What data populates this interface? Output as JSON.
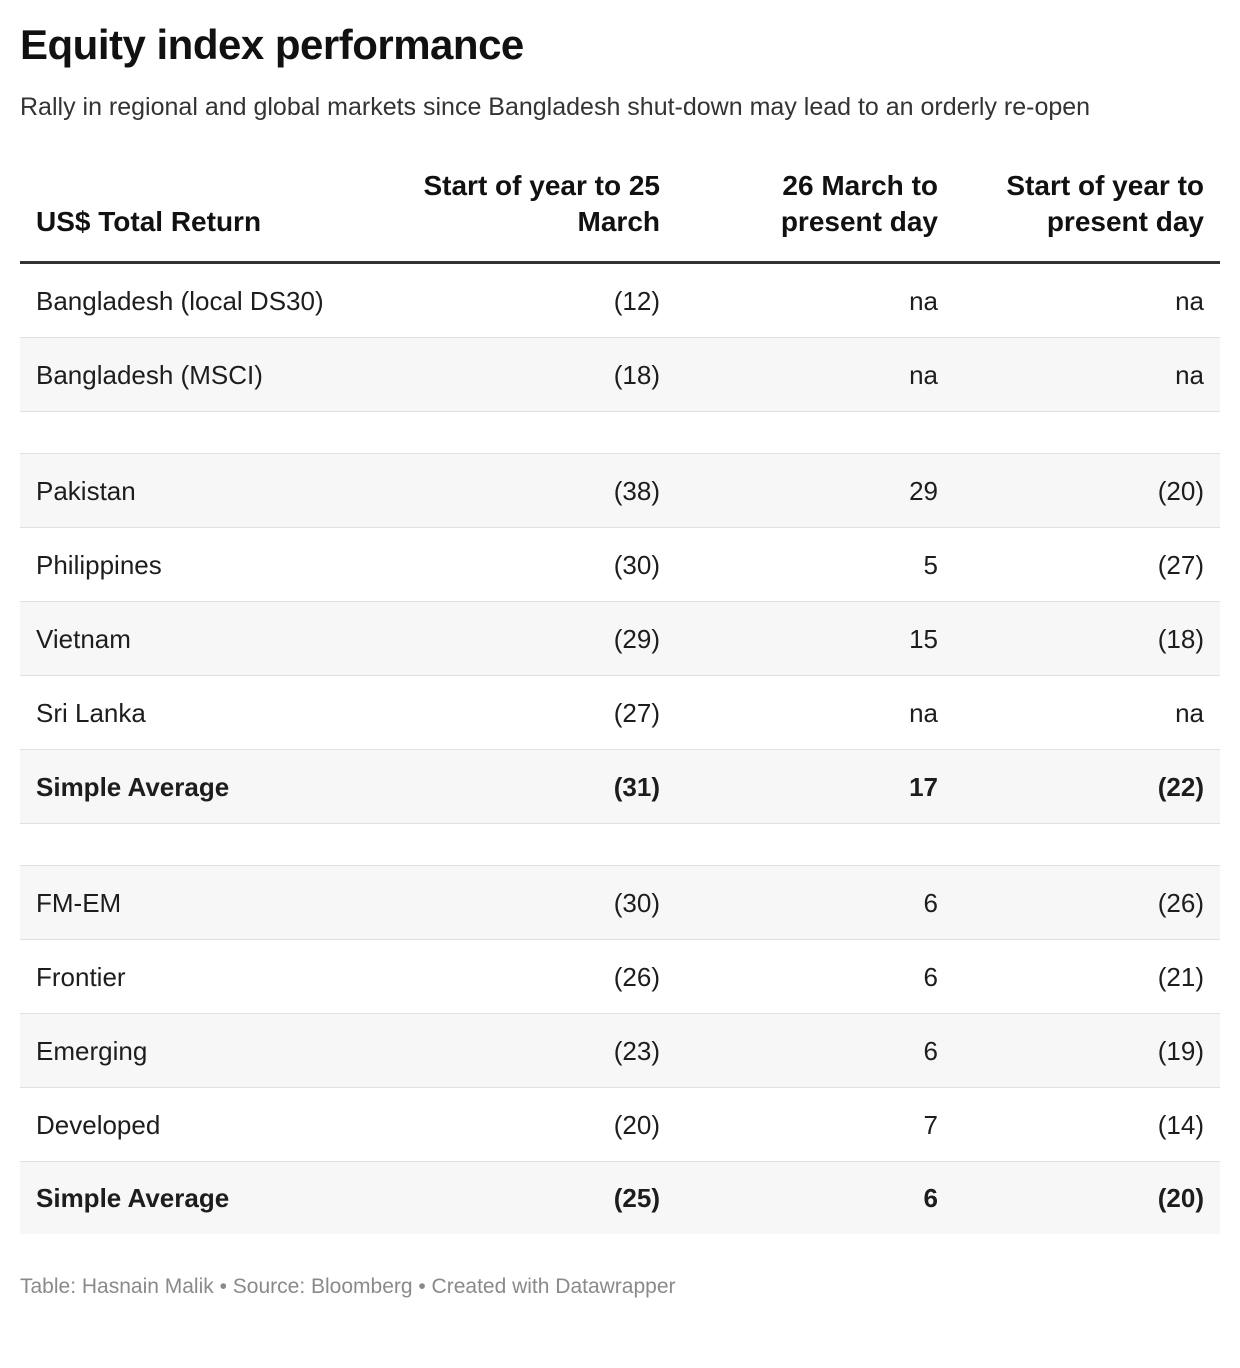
{
  "title": "Equity index performance",
  "subtitle": "Rally in regional and global markets since Bangladesh shut-down may lead to an orderly re-open",
  "footer": "Table: Hasnain Malik • Source: Bloomberg • Created with Datawrapper",
  "chart_data": {
    "type": "table",
    "columns": [
      "US$ Total Return",
      "Start of year to 25 March",
      "26 March to present day",
      "Start of year to present day"
    ],
    "rows": [
      {
        "name": "Bangladesh (local DS30)",
        "cells": [
          "(12)",
          "na",
          "na"
        ],
        "style": "normal"
      },
      {
        "name": "Bangladesh (MSCI)",
        "cells": [
          "(18)",
          "na",
          "na"
        ],
        "style": "normal"
      },
      {
        "name": "",
        "cells": [
          "",
          "",
          ""
        ],
        "style": "spacer"
      },
      {
        "name": "Pakistan",
        "cells": [
          "(38)",
          "29",
          "(20)"
        ],
        "style": "normal"
      },
      {
        "name": "Philippines",
        "cells": [
          "(30)",
          "5",
          "(27)"
        ],
        "style": "normal"
      },
      {
        "name": "Vietnam",
        "cells": [
          "(29)",
          "15",
          "(18)"
        ],
        "style": "normal"
      },
      {
        "name": "Sri Lanka",
        "cells": [
          "(27)",
          "na",
          "na"
        ],
        "style": "normal"
      },
      {
        "name": "Simple Average",
        "cells": [
          "(31)",
          "17",
          "(22)"
        ],
        "style": "bold"
      },
      {
        "name": "",
        "cells": [
          "",
          "",
          ""
        ],
        "style": "spacer"
      },
      {
        "name": "FM-EM",
        "cells": [
          "(30)",
          "6",
          "(26)"
        ],
        "style": "normal"
      },
      {
        "name": "Frontier",
        "cells": [
          "(26)",
          "6",
          "(21)"
        ],
        "style": "normal"
      },
      {
        "name": "Emerging",
        "cells": [
          "(23)",
          "6",
          "(19)"
        ],
        "style": "normal"
      },
      {
        "name": "Developed",
        "cells": [
          "(20)",
          "7",
          "(14)"
        ],
        "style": "normal"
      },
      {
        "name": "Simple Average",
        "cells": [
          "(25)",
          "6",
          "(20)"
        ],
        "style": "bold"
      }
    ]
  }
}
